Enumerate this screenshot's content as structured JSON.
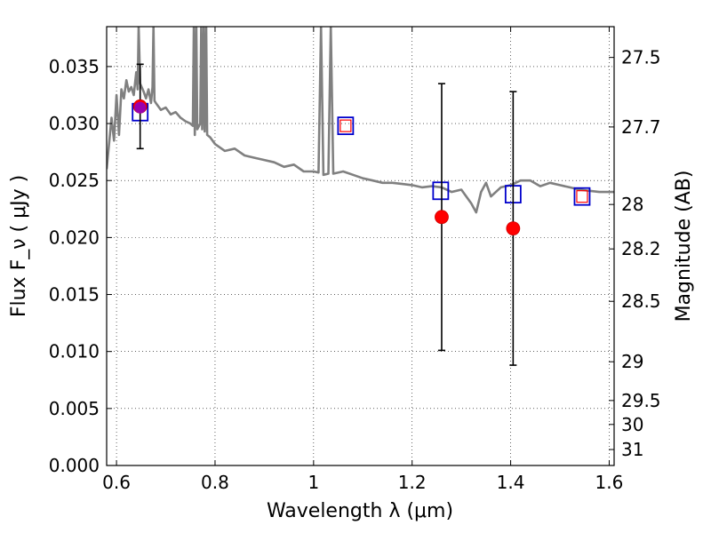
{
  "chart_data": {
    "type": "scatter",
    "xlabel": "Wavelength  λ (μm)",
    "ylabel": "Flux  F_ν  ( μJy )",
    "ylabel_right": "Magnitude (AB)",
    "xlim": [
      0.58,
      1.61
    ],
    "ylim": [
      0.0,
      0.0385
    ],
    "grid": true,
    "x_ticks": [
      0.6,
      0.8,
      1.0,
      1.2,
      1.4,
      1.6
    ],
    "x_tick_labels": [
      "0.6",
      "0.8",
      "1",
      "1.2",
      "1.4",
      "1.6"
    ],
    "y_ticks": [
      0.0,
      0.005,
      0.01,
      0.015,
      0.02,
      0.025,
      0.03,
      0.035
    ],
    "y_tick_labels": [
      "0.000",
      "0.005",
      "0.010",
      "0.015",
      "0.020",
      "0.025",
      "0.030",
      "0.035"
    ],
    "right_ticks": [
      {
        "label": "27.5",
        "flux": 0.0358
      },
      {
        "label": "27.7",
        "flux": 0.0297
      },
      {
        "label": "28",
        "flux": 0.0229
      },
      {
        "label": "28.2",
        "flux": 0.019
      },
      {
        "label": "28.5",
        "flux": 0.0144
      },
      {
        "label": "29",
        "flux": 0.0091
      },
      {
        "label": "29.5",
        "flux": 0.0057
      },
      {
        "label": "30",
        "flux": 0.0036
      },
      {
        "label": "31",
        "flux": 0.0014
      }
    ],
    "series": [
      {
        "kind": "model_spectrum",
        "color": "#808080",
        "points": [
          [
            0.58,
            0.026
          ],
          [
            0.59,
            0.0305
          ],
          [
            0.595,
            0.0285
          ],
          [
            0.6,
            0.0325
          ],
          [
            0.605,
            0.029
          ],
          [
            0.61,
            0.033
          ],
          [
            0.615,
            0.0322
          ],
          [
            0.62,
            0.0338
          ],
          [
            0.625,
            0.0328
          ],
          [
            0.63,
            0.0332
          ],
          [
            0.635,
            0.0325
          ],
          [
            0.64,
            0.0345
          ],
          [
            0.643,
            0.033
          ],
          [
            0.645,
            0.0385
          ],
          [
            0.648,
            0.0335
          ],
          [
            0.655,
            0.0328
          ],
          [
            0.66,
            0.0322
          ],
          [
            0.665,
            0.033
          ],
          [
            0.67,
            0.0318
          ],
          [
            0.673,
            0.0332
          ],
          [
            0.675,
            0.0385
          ],
          [
            0.677,
            0.032
          ],
          [
            0.68,
            0.0318
          ],
          [
            0.69,
            0.0312
          ],
          [
            0.7,
            0.0314
          ],
          [
            0.71,
            0.0308
          ],
          [
            0.72,
            0.031
          ],
          [
            0.73,
            0.0305
          ],
          [
            0.74,
            0.0302
          ],
          [
            0.75,
            0.03
          ],
          [
            0.755,
            0.0298
          ],
          [
            0.757,
            0.0385
          ],
          [
            0.759,
            0.029
          ],
          [
            0.762,
            0.0385
          ],
          [
            0.764,
            0.0295
          ],
          [
            0.77,
            0.03
          ],
          [
            0.772,
            0.0385
          ],
          [
            0.774,
            0.0295
          ],
          [
            0.777,
            0.0385
          ],
          [
            0.779,
            0.0293
          ],
          [
            0.782,
            0.0385
          ],
          [
            0.784,
            0.029
          ],
          [
            0.79,
            0.0288
          ],
          [
            0.8,
            0.0282
          ],
          [
            0.82,
            0.0276
          ],
          [
            0.84,
            0.0278
          ],
          [
            0.86,
            0.0272
          ],
          [
            0.88,
            0.027
          ],
          [
            0.9,
            0.0268
          ],
          [
            0.92,
            0.0266
          ],
          [
            0.94,
            0.0262
          ],
          [
            0.96,
            0.0264
          ],
          [
            0.98,
            0.0258
          ],
          [
            1.0,
            0.0258
          ],
          [
            1.01,
            0.0257
          ],
          [
            1.015,
            0.0385
          ],
          [
            1.02,
            0.0255
          ],
          [
            1.03,
            0.0256
          ],
          [
            1.035,
            0.0385
          ],
          [
            1.04,
            0.0256
          ],
          [
            1.06,
            0.0258
          ],
          [
            1.08,
            0.0255
          ],
          [
            1.1,
            0.0252
          ],
          [
            1.12,
            0.025
          ],
          [
            1.14,
            0.0248
          ],
          [
            1.16,
            0.0248
          ],
          [
            1.18,
            0.0247
          ],
          [
            1.2,
            0.0246
          ],
          [
            1.22,
            0.0244
          ],
          [
            1.24,
            0.0245
          ],
          [
            1.26,
            0.0244
          ],
          [
            1.28,
            0.024
          ],
          [
            1.3,
            0.0242
          ],
          [
            1.32,
            0.023
          ],
          [
            1.33,
            0.0222
          ],
          [
            1.34,
            0.024
          ],
          [
            1.35,
            0.0248
          ],
          [
            1.36,
            0.0236
          ],
          [
            1.38,
            0.0244
          ],
          [
            1.4,
            0.0246
          ],
          [
            1.42,
            0.025
          ],
          [
            1.44,
            0.025
          ],
          [
            1.46,
            0.0245
          ],
          [
            1.48,
            0.0248
          ],
          [
            1.5,
            0.0246
          ],
          [
            1.52,
            0.0244
          ],
          [
            1.54,
            0.0242
          ],
          [
            1.56,
            0.0241
          ],
          [
            1.58,
            0.024
          ],
          [
            1.6,
            0.024
          ],
          [
            1.61,
            0.024
          ]
        ]
      },
      {
        "kind": "blue_squares",
        "color": "#0000cc",
        "x": [
          0.648,
          1.065,
          1.258,
          1.405,
          1.545
        ],
        "y": [
          0.031,
          0.0298,
          0.0241,
          0.0238,
          0.0236
        ]
      },
      {
        "kind": "red_squares",
        "color": "#ff0000",
        "x": [
          1.065,
          1.545
        ],
        "y": [
          0.0298,
          0.0236
        ]
      },
      {
        "kind": "observed_points",
        "color": "#ff0000",
        "x": [
          0.648,
          1.26,
          1.405
        ],
        "y": [
          0.0315,
          0.0218,
          0.0208
        ],
        "yerr_low": [
          0.0037,
          0.0117,
          0.012
        ],
        "yerr_high": [
          0.0037,
          0.0117,
          0.012
        ]
      },
      {
        "kind": "purple_marker",
        "color": "#8800cc",
        "x": [
          0.648
        ],
        "y": [
          0.0314
        ]
      }
    ]
  }
}
